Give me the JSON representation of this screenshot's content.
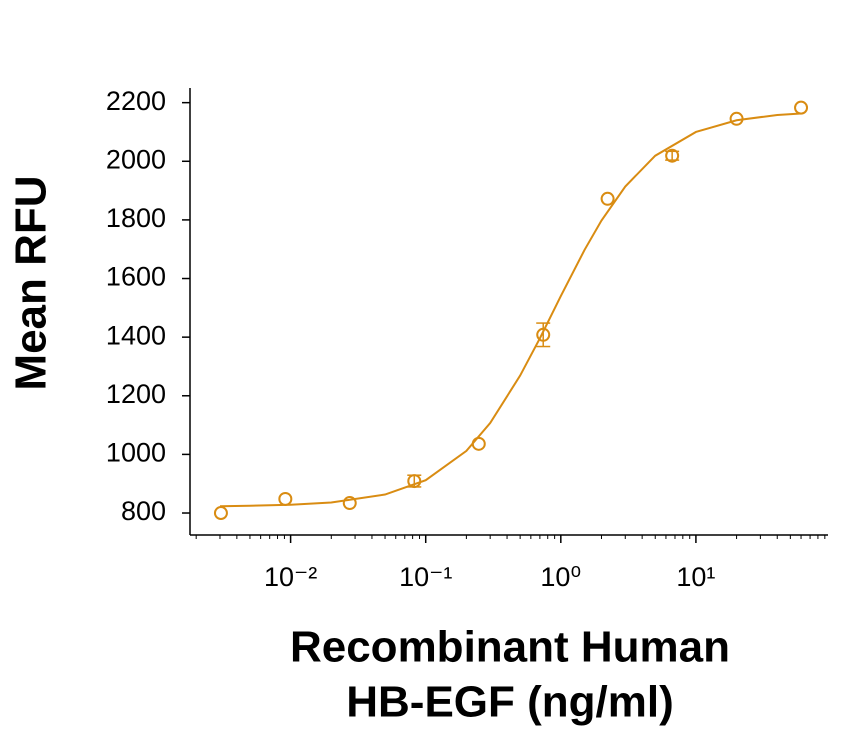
{
  "chart_data": {
    "type": "scatter",
    "y_label": "Mean RFU",
    "x_label": [
      "Recombinant Human",
      "HB-EGF (ng/ml)"
    ],
    "xscale": "log",
    "xlim": [
      0.0018,
      95
    ],
    "ylim": [
      725,
      2250
    ],
    "xticks": [
      {
        "value": 0.01,
        "label": "10⁻²"
      },
      {
        "value": 0.1,
        "label": "10⁻¹"
      },
      {
        "value": 1,
        "label": "10⁰"
      },
      {
        "value": 10,
        "label": "10¹"
      }
    ],
    "yticks": [
      800,
      1000,
      1200,
      1400,
      1600,
      1800,
      2000,
      2200
    ],
    "series": [
      {
        "type": "scatter",
        "color": "#d98c12",
        "x": [
          0.00305,
          0.00914,
          0.0274,
          0.0823,
          0.247,
          0.741,
          2.22,
          6.67,
          20,
          60
        ],
        "values": [
          800,
          848,
          834,
          909,
          1036,
          1408,
          1872,
          2019,
          2145,
          2183
        ],
        "errors": [
          null,
          null,
          null,
          20,
          null,
          40,
          null,
          15,
          null,
          null
        ]
      },
      {
        "type": "line",
        "color": "#d98c12",
        "x": [
          0.003,
          0.005,
          0.01,
          0.02,
          0.05,
          0.1,
          0.2,
          0.3,
          0.5,
          0.7,
          1,
          1.5,
          2,
          3,
          5,
          10,
          20,
          40,
          60
        ],
        "values": [
          823,
          825,
          828,
          836,
          863,
          912,
          1012,
          1107,
          1269,
          1396,
          1540,
          1698,
          1798,
          1914,
          2019,
          2100,
          2140,
          2158,
          2163
        ]
      }
    ]
  }
}
